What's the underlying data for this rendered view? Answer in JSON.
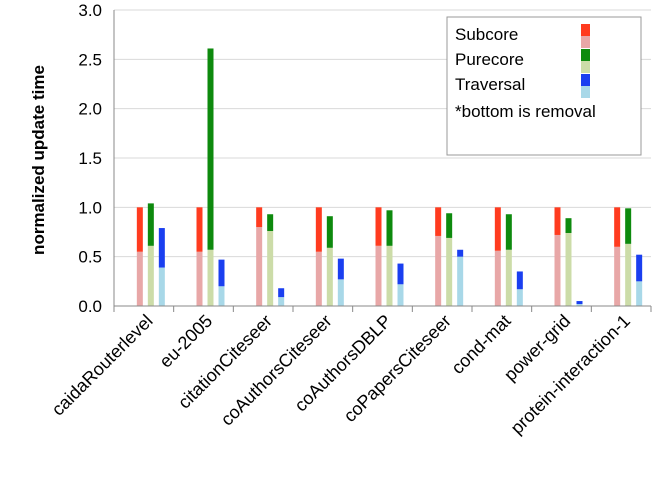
{
  "chart_data": {
    "type": "bar",
    "stacked": true,
    "ylabel": "normalized update time",
    "xlabel": "",
    "ylim": [
      0,
      3.0
    ],
    "yticks": [
      "0.0",
      "0.5",
      "1.0",
      "1.5",
      "2.0",
      "2.5",
      "3.0"
    ],
    "grid": true,
    "legend_placement": "top-right",
    "categories": [
      "caidaRouterlevel",
      "eu-2005",
      "citationCiteseer",
      "coAuthorsCiteseer",
      "coAuthorsDBLP",
      "coPapersCiteseer",
      "cond-mat",
      "power-grid",
      "protein-interaction-1"
    ],
    "series": [
      {
        "name": "Subcore",
        "removal": [
          0.55,
          0.55,
          0.8,
          0.55,
          0.61,
          0.71,
          0.56,
          0.72,
          0.6
        ],
        "total": [
          1.0,
          1.0,
          1.0,
          1.0,
          1.0,
          1.0,
          1.0,
          1.0,
          1.0
        ],
        "color_top": "#ff3b1f",
        "color_bottom": "#e8a7a7"
      },
      {
        "name": "Purecore",
        "removal": [
          0.61,
          0.57,
          0.76,
          0.59,
          0.61,
          0.69,
          0.57,
          0.74,
          0.63
        ],
        "total": [
          1.04,
          2.61,
          0.93,
          0.91,
          0.97,
          0.94,
          0.93,
          0.89,
          0.99
        ],
        "color_top": "#0e8a0e",
        "color_bottom": "#ccdca8"
      },
      {
        "name": "Traversal",
        "removal": [
          0.39,
          0.2,
          0.09,
          0.27,
          0.22,
          0.5,
          0.17,
          0.02,
          0.25
        ],
        "total": [
          0.79,
          0.47,
          0.18,
          0.48,
          0.43,
          0.57,
          0.35,
          0.05,
          0.52
        ],
        "color_top": "#1a3ff0",
        "color_bottom": "#a8d8e8"
      }
    ],
    "legend_note": "*bottom is removal"
  }
}
